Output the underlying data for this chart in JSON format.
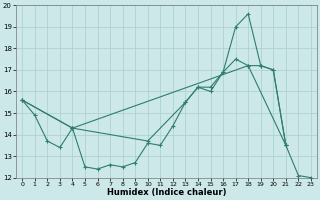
{
  "xlabel": "Humidex (Indice chaleur)",
  "bg_color": "#cce8e8",
  "line_color": "#2e7d6e",
  "grid_color": "#aacece",
  "xlim": [
    -0.5,
    23.5
  ],
  "ylim": [
    12,
    20
  ],
  "xticks": [
    0,
    1,
    2,
    3,
    4,
    5,
    6,
    7,
    8,
    9,
    10,
    11,
    12,
    13,
    14,
    15,
    16,
    17,
    18,
    19,
    20,
    21,
    22,
    23
  ],
  "yticks": [
    12,
    13,
    14,
    15,
    16,
    17,
    18,
    19,
    20
  ],
  "line1_x": [
    0,
    1,
    2,
    3,
    4,
    5,
    6,
    7,
    8,
    9,
    10,
    11,
    12,
    13,
    14,
    15,
    16,
    17,
    18,
    19,
    20,
    21,
    22,
    23
  ],
  "line1_y": [
    15.6,
    14.9,
    13.7,
    13.4,
    14.3,
    12.5,
    12.4,
    12.6,
    12.5,
    12.7,
    13.6,
    13.5,
    14.4,
    15.5,
    16.2,
    16.0,
    16.9,
    19.0,
    19.6,
    17.2,
    17.0,
    13.5,
    12.1,
    12.0
  ],
  "line2_x": [
    0,
    4,
    18,
    21
  ],
  "line2_y": [
    15.6,
    14.3,
    17.2,
    13.5
  ],
  "line3_x": [
    0,
    4,
    10,
    13,
    14,
    15,
    16,
    17,
    18,
    19,
    20,
    21
  ],
  "line3_y": [
    15.6,
    14.3,
    13.7,
    15.5,
    16.2,
    16.2,
    16.9,
    17.5,
    17.2,
    17.2,
    17.0,
    13.5
  ]
}
